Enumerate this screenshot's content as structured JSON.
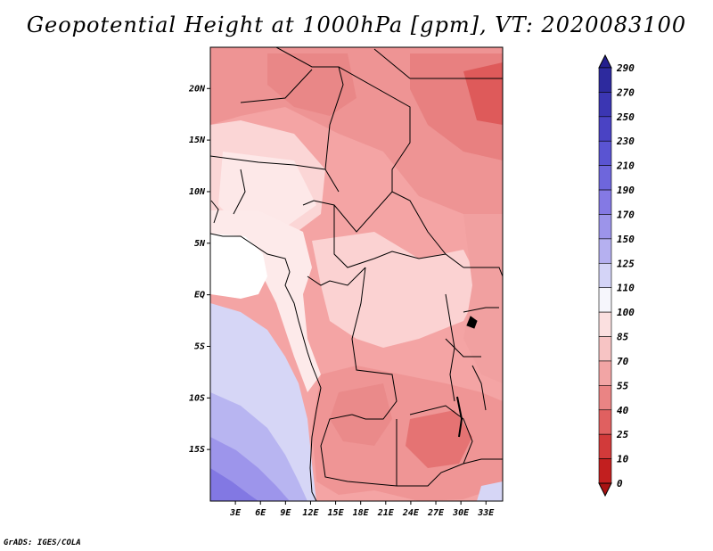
{
  "figure": {
    "title": "Geopotential Height at 1000hPa [gpm], VT: 2020083100",
    "credit": "GrADS: IGES/COLA"
  },
  "map": {
    "lon_range": [
      0,
      35
    ],
    "lat_range": [
      -20,
      24
    ],
    "lon_ticks": [
      {
        "lon": 3,
        "label": "3E"
      },
      {
        "lon": 6,
        "label": "6E"
      },
      {
        "lon": 9,
        "label": "9E"
      },
      {
        "lon": 12,
        "label": "12E"
      },
      {
        "lon": 15,
        "label": "15E"
      },
      {
        "lon": 18,
        "label": "18E"
      },
      {
        "lon": 21,
        "label": "21E"
      },
      {
        "lon": 24,
        "label": "24E"
      },
      {
        "lon": 27,
        "label": "27E"
      },
      {
        "lon": 30,
        "label": "30E"
      },
      {
        "lon": 33,
        "label": "33E"
      }
    ],
    "lat_ticks": [
      {
        "lat": 20,
        "label": "20N"
      },
      {
        "lat": 15,
        "label": "15N"
      },
      {
        "lat": 10,
        "label": "10N"
      },
      {
        "lat": 5,
        "label": "5N"
      },
      {
        "lat": 0,
        "label": "EQ"
      },
      {
        "lat": -5,
        "label": "5S"
      },
      {
        "lat": -10,
        "label": "10S"
      },
      {
        "lat": -15,
        "label": "15S"
      }
    ]
  },
  "colorbar": {
    "labels": [
      "290",
      "270",
      "250",
      "230",
      "210",
      "190",
      "170",
      "150",
      "125",
      "110",
      "100",
      "85",
      "70",
      "55",
      "40",
      "25",
      "10",
      "0"
    ],
    "colors": [
      "#241f8e",
      "#2d2a9e",
      "#3b36b3",
      "#4a43c4",
      "#5a54d2",
      "#6e66dc",
      "#8479e4",
      "#9c94ea",
      "#b5b0f0",
      "#d4d4f7",
      "#f6f6fc",
      "#fbe0e0",
      "#f7c4c4",
      "#f2a5a5",
      "#ea8484",
      "#e06060",
      "#d23a3a",
      "#c21f1f",
      "#a81212"
    ]
  }
}
